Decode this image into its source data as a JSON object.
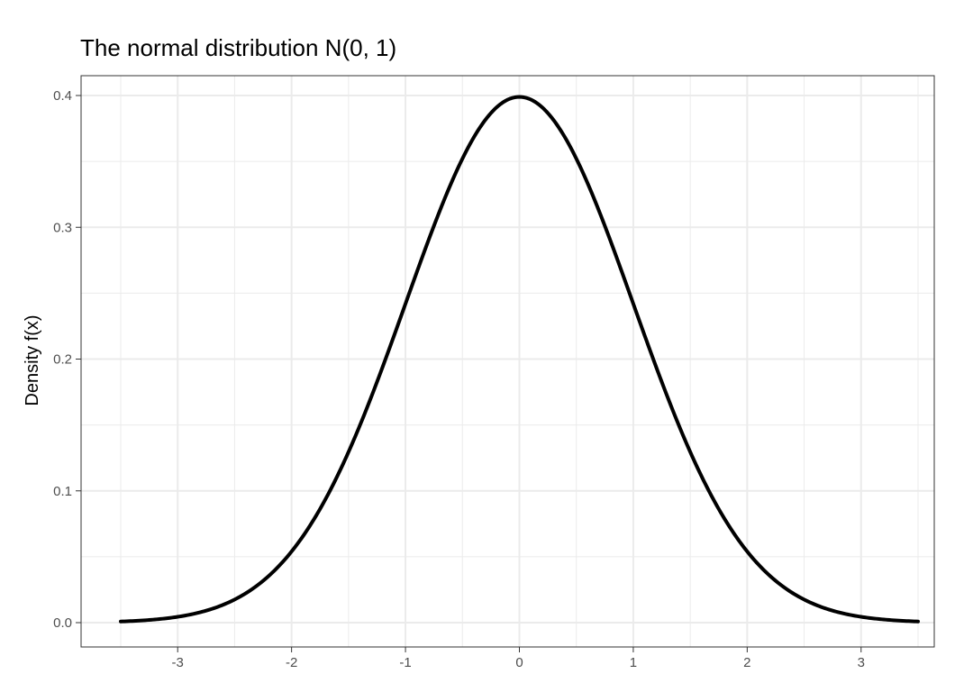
{
  "chart_data": {
    "type": "line",
    "title": "The normal distribution N(0, 1)",
    "xlabel": "",
    "ylabel": "Density f(x)",
    "xlim": [
      -3.5,
      3.5
    ],
    "ylim": [
      0.0,
      0.4
    ],
    "x_ticks": [
      -3,
      -2,
      -1,
      0,
      1,
      2,
      3
    ],
    "x_tick_labels": [
      "-3",
      "-2",
      "-1",
      "0",
      "1",
      "2",
      "3"
    ],
    "y_ticks": [
      0.0,
      0.1,
      0.2,
      0.3,
      0.4
    ],
    "y_tick_labels": [
      "0.0",
      "0.1",
      "0.2",
      "0.3",
      "0.4"
    ],
    "x_minor_ticks": [
      -3.5,
      -2.5,
      -1.5,
      -0.5,
      0.5,
      1.5,
      2.5,
      3.5
    ],
    "y_minor_ticks": [
      0.05,
      0.15,
      0.25,
      0.35
    ],
    "grid": true,
    "legend": "none",
    "line_color": "#000000",
    "grid_color": "#ebebeb",
    "panel_border_color": "#333333",
    "series": [
      {
        "x": [
          -3.5,
          -3.25,
          -3.0,
          -2.75,
          -2.5,
          -2.25,
          -2.0,
          -1.75,
          -1.5,
          -1.25,
          -1.0,
          -0.75,
          -0.5,
          -0.25,
          0.0,
          0.25,
          0.5,
          0.75,
          1.0,
          1.25,
          1.5,
          1.75,
          2.0,
          2.25,
          2.5,
          2.75,
          3.0,
          3.25,
          3.5
        ],
        "values": [
          0.0009,
          0.002,
          0.0044,
          0.0091,
          0.0175,
          0.0317,
          0.054,
          0.0863,
          0.1295,
          0.1826,
          0.242,
          0.3011,
          0.3521,
          0.3867,
          0.3989,
          0.3867,
          0.3521,
          0.3011,
          0.242,
          0.1826,
          0.1295,
          0.0863,
          0.054,
          0.0317,
          0.0175,
          0.0091,
          0.0044,
          0.002,
          0.0009
        ]
      }
    ]
  }
}
